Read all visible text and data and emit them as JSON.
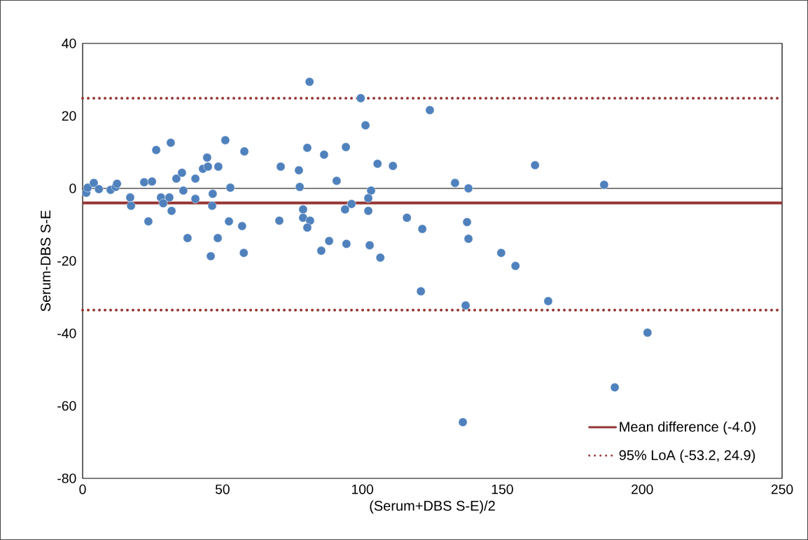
{
  "chart_data": {
    "type": "scatter",
    "xlabel": "(Serum+DBS S-E)/2",
    "ylabel": "Serum-DBS S-E",
    "xlim": [
      0,
      250
    ],
    "xticks": [
      0,
      50,
      100,
      150,
      200,
      250
    ],
    "ylim": [
      -80,
      40
    ],
    "yticks": [
      -80,
      -60,
      -40,
      -20,
      0,
      20,
      40
    ],
    "grid": false,
    "legend": "bottom right",
    "series": [
      {
        "color": "#4f81bd",
        "x": [
          1.3,
          1.8,
          4,
          5.8,
          10,
          11.8,
          12.3,
          17,
          17.3,
          22,
          23.5,
          24.8,
          26.3,
          28,
          28.8,
          31,
          31.5,
          31.8,
          33.5,
          35.5,
          36,
          37.5,
          40.3,
          40.3,
          43,
          44.5,
          44.8,
          46.5,
          46.3,
          48.5,
          51,
          52.8,
          52.3,
          57,
          57.8,
          48.3,
          45.8,
          57.6,
          70.8,
          70.3,
          80.3,
          77.3,
          77.6,
          78.8,
          78.8,
          81.3,
          80.3,
          88.1,
          85.3,
          86.3,
          90.8,
          94.1,
          99.4,
          101.1,
          93.8,
          96.1,
          94.3,
          103.1,
          102.1,
          102.1,
          102.6,
          106.4,
          105.4,
          110.9,
          115.9,
          121.4,
          124.1,
          81.1,
          161.7,
          133.1,
          137.9,
          186.4,
          137.4,
          137.9,
          149.6,
          154.7,
          120.9,
          136.9,
          166.4,
          201.9,
          190.2,
          135.9
        ],
        "values": [
          -1.2,
          0.2,
          1.5,
          -0.2,
          -0.4,
          0.4,
          1.3,
          -2.5,
          -4.8,
          1.7,
          -9.1,
          1.9,
          10.6,
          -2.5,
          -4.1,
          -2.5,
          12.6,
          -6.2,
          2.7,
          4.3,
          -0.6,
          -13.7,
          2.7,
          -2.9,
          5.4,
          8.5,
          6.0,
          -1.5,
          -4.8,
          6.0,
          13.3,
          0.2,
          -9.1,
          -10.4,
          10.2,
          -13.7,
          -18.7,
          -17.8,
          6.0,
          -8.9,
          11.2,
          5.0,
          0.4,
          -5.8,
          -8.1,
          -8.9,
          -10.8,
          -14.5,
          -17.2,
          9.3,
          2.1,
          11.4,
          24.9,
          17.4,
          -5.8,
          -4.3,
          -15.3,
          -0.6,
          -2.7,
          -6.2,
          -15.7,
          -19.1,
          6.8,
          6.2,
          -8.1,
          -11.2,
          21.6,
          29.4,
          6.4,
          1.5,
          0,
          1.0,
          -9.3,
          -13.9,
          -17.8,
          -21.4,
          -28.4,
          -32.3,
          -31.1,
          -39.8,
          -54.9,
          -64.5
        ]
      }
    ],
    "ref_lines": [
      {
        "axis": "y",
        "value": 0,
        "color": "#000000",
        "line_style": "solid"
      },
      {
        "axis": "y",
        "value": -4.0,
        "label": "Mean difference (-4.0)",
        "color": "#943634",
        "line_style": "solid"
      },
      {
        "axis": "y",
        "value": 24.9,
        "label": "95% LoA (-53.2, 24.9)",
        "color": "#943634",
        "line_style": "dotted"
      },
      {
        "axis": "y",
        "value": -33.6,
        "color": "#943634",
        "line_style": "dotted"
      }
    ]
  }
}
